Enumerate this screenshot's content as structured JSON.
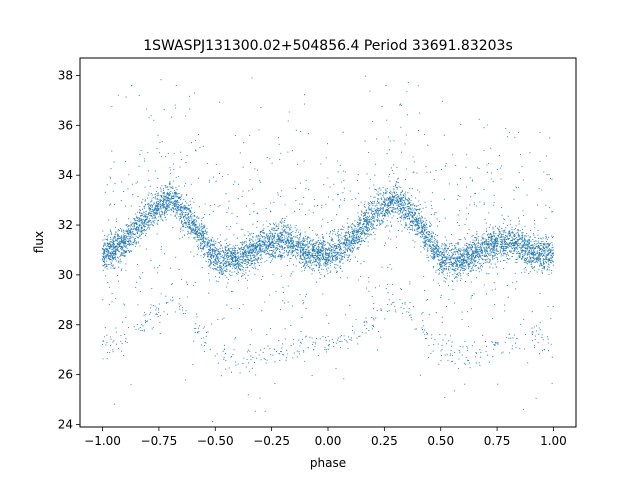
{
  "chart_data": {
    "type": "scatter",
    "title": "1SWASPJ131300.02+504856.4 Period 33691.83203s",
    "xlabel": "phase",
    "ylabel": "flux",
    "xlim": [
      -1.1,
      1.1
    ],
    "ylim": [
      23.9,
      38.7
    ],
    "xticks": [
      -1.0,
      -0.75,
      -0.5,
      -0.25,
      0.0,
      0.25,
      0.5,
      0.75,
      1.0
    ],
    "xtick_labels": [
      "−1.00",
      "−0.75",
      "−0.50",
      "−0.25",
      "0.00",
      "0.25",
      "0.50",
      "0.75",
      "1.00"
    ],
    "yticks": [
      24,
      26,
      28,
      30,
      32,
      34,
      36,
      38
    ],
    "ytick_labels": [
      "24",
      "26",
      "28",
      "30",
      "32",
      "34",
      "36",
      "38"
    ],
    "grid": false,
    "point_color": "#1f77b4",
    "series": [
      {
        "name": "",
        "description_points": "phase-folded light curve, main band (median flux vs phase)",
        "x": [
          -1.0,
          -0.9,
          -0.8,
          -0.7,
          -0.6,
          -0.5,
          -0.4,
          -0.3,
          -0.2,
          -0.1,
          0.0,
          0.1,
          0.2,
          0.3,
          0.4,
          0.5,
          0.6,
          0.7,
          0.8,
          0.9,
          1.0
        ],
        "y": [
          30.8,
          31.3,
          32.4,
          33.1,
          32.1,
          30.6,
          30.6,
          31.1,
          31.4,
          30.9,
          30.8,
          31.3,
          32.4,
          33.1,
          32.1,
          30.6,
          30.6,
          31.1,
          31.4,
          30.9,
          30.8
        ]
      },
      {
        "name": "",
        "description_points": "secondary faint band",
        "x": [
          -1.0,
          -0.95,
          -0.85,
          -0.75,
          -0.7,
          -0.65,
          -0.6,
          -0.55,
          -0.5,
          -0.4,
          0.0,
          0.05,
          0.15,
          0.25,
          0.3,
          0.35,
          0.4,
          0.45,
          0.5,
          0.6,
          0.85,
          0.95,
          1.0
        ],
        "y": [
          27.2,
          27.2,
          27.8,
          28.6,
          29.0,
          28.7,
          28.1,
          27.4,
          27.0,
          26.6,
          27.2,
          27.2,
          27.8,
          28.6,
          29.0,
          28.7,
          28.1,
          27.4,
          27.0,
          26.6,
          27.6,
          27.4,
          27.2
        ]
      }
    ]
  }
}
